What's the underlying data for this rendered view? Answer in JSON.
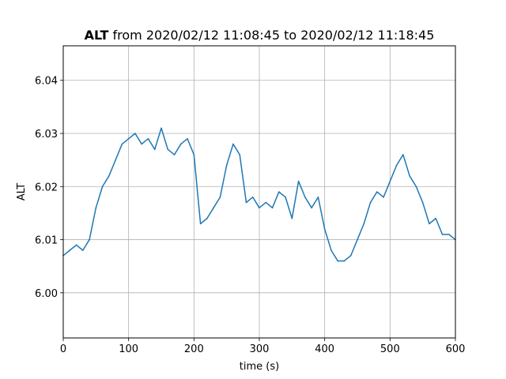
{
  "chart_data": {
    "type": "line",
    "title_bold": "ALT",
    "title_rest": " from 2020/02/12 11:08:45 to 2020/02/12 11:18:45",
    "xlabel": "time (s)",
    "ylabel": "ALT",
    "xlim": [
      0,
      600
    ],
    "ylim": [
      5.9915,
      6.0465
    ],
    "xticks": [
      0,
      100,
      200,
      300,
      400,
      500,
      600
    ],
    "yticks": [
      6.0,
      6.01,
      6.02,
      6.03,
      6.04
    ],
    "ytick_labels": [
      "6.00",
      "6.01",
      "6.02",
      "6.03",
      "6.04"
    ],
    "grid": true,
    "line_color": "#1f77b4",
    "series": [
      {
        "x": [
          0,
          10,
          20,
          30,
          40,
          50,
          60,
          70,
          80,
          90,
          100,
          110,
          120,
          130,
          140,
          150,
          160,
          170,
          180,
          190,
          200,
          210,
          220,
          230,
          240,
          250,
          260,
          270,
          280,
          290,
          300,
          310,
          320,
          330,
          340,
          350,
          360,
          370,
          380,
          390,
          400,
          410,
          420,
          430,
          440,
          450,
          460,
          470,
          480,
          490,
          500,
          510,
          520,
          530,
          540,
          550,
          560,
          570,
          580,
          590,
          600
        ],
        "y": [
          6.007,
          6.008,
          6.009,
          6.008,
          6.01,
          6.016,
          6.02,
          6.022,
          6.025,
          6.028,
          6.029,
          6.03,
          6.028,
          6.029,
          6.027,
          6.031,
          6.027,
          6.026,
          6.028,
          6.029,
          6.026,
          6.013,
          6.014,
          6.016,
          6.018,
          6.024,
          6.028,
          6.026,
          6.017,
          6.018,
          6.016,
          6.017,
          6.016,
          6.019,
          6.018,
          6.014,
          6.021,
          6.018,
          6.016,
          6.018,
          6.012,
          6.008,
          6.006,
          6.006,
          6.007,
          6.01,
          6.013,
          6.017,
          6.019,
          6.018,
          6.021,
          6.024,
          6.026,
          6.022,
          6.02,
          6.017,
          6.013,
          6.014,
          6.011,
          6.011,
          6.01
        ]
      }
    ]
  }
}
